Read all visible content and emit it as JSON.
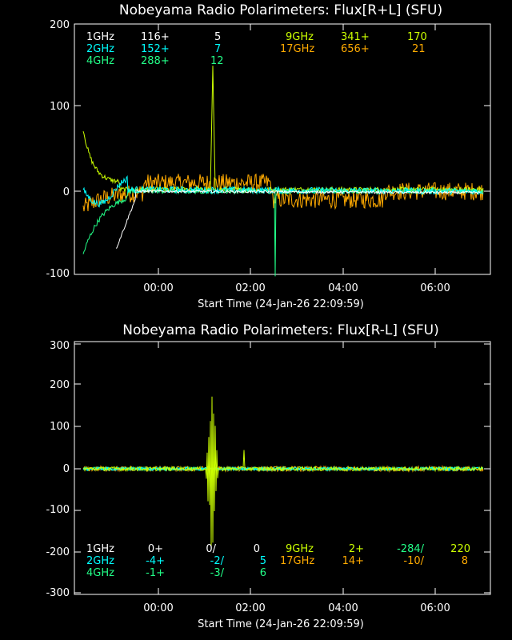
{
  "chart_data": [
    {
      "type": "line",
      "title": "Nobeyama Radio Polarimeters: Flux[R+L] (SFU)",
      "xlabel": "Start Time (24-Jan-26 22:09:59)",
      "x_ticks": [
        "00:00",
        "02:00",
        "04:00",
        "06:00"
      ],
      "y_ticks": [
        "-100",
        "0",
        "100",
        "200"
      ],
      "ylim": [
        -100,
        200
      ],
      "xlim_hours_from_start": [
        -0.25,
        9.0
      ],
      "legend": [
        {
          "freq": "1GHz",
          "v1": "116+",
          "v2": "5",
          "color": "#ffffff"
        },
        {
          "freq": "2GHz",
          "v1": "152+",
          "v2": "7",
          "color": "#00ffff"
        },
        {
          "freq": "4GHz",
          "v1": "288+",
          "v2": "12",
          "color": "#22ff88"
        },
        {
          "freq": "9GHz",
          "v1": "341+",
          "v2": "170",
          "color": "#ccff00"
        },
        {
          "freq": "17GHz",
          "v1": "656+",
          "v2": "21",
          "color": "#ffaa00"
        }
      ],
      "series": [
        {
          "name": "1GHz",
          "color": "#ffffff"
        },
        {
          "name": "2GHz",
          "color": "#00ffff"
        },
        {
          "name": "4GHz",
          "color": "#22ff88"
        },
        {
          "name": "9GHz",
          "color": "#ccff00"
        },
        {
          "name": "17GHz",
          "color": "#ffaa00"
        }
      ]
    },
    {
      "type": "line",
      "title": "Nobeyama Radio Polarimeters: Flux[R-L] (SFU)",
      "xlabel": "Start Time (24-Jan-26 22:09:59)",
      "x_ticks": [
        "00:00",
        "02:00",
        "04:00",
        "06:00"
      ],
      "y_ticks": [
        "-300",
        "-200",
        "-100",
        "0",
        "100",
        "200",
        "300"
      ],
      "ylim": [
        -310,
        310
      ],
      "xlim_hours_from_start": [
        -0.25,
        9.0
      ],
      "legend": [
        {
          "freq": "1GHz",
          "v1": "0+",
          "v2": "0/",
          "v3": "0",
          "color": "#ffffff"
        },
        {
          "freq": "2GHz",
          "v1": "-4+",
          "v2": "-2/",
          "v3": "5",
          "color": "#00ffff"
        },
        {
          "freq": "4GHz",
          "v1": "-1+",
          "v2": "-3/",
          "v3": "6",
          "color": "#22ff88"
        },
        {
          "freq": "9GHz",
          "v1": "2+",
          "v2": "-284/",
          "v3": "220",
          "color": "#ccff00"
        },
        {
          "freq": "17GHz",
          "v1": "14+",
          "v2": "-10/",
          "v3": "8",
          "color": "#ffaa00"
        }
      ]
    }
  ]
}
